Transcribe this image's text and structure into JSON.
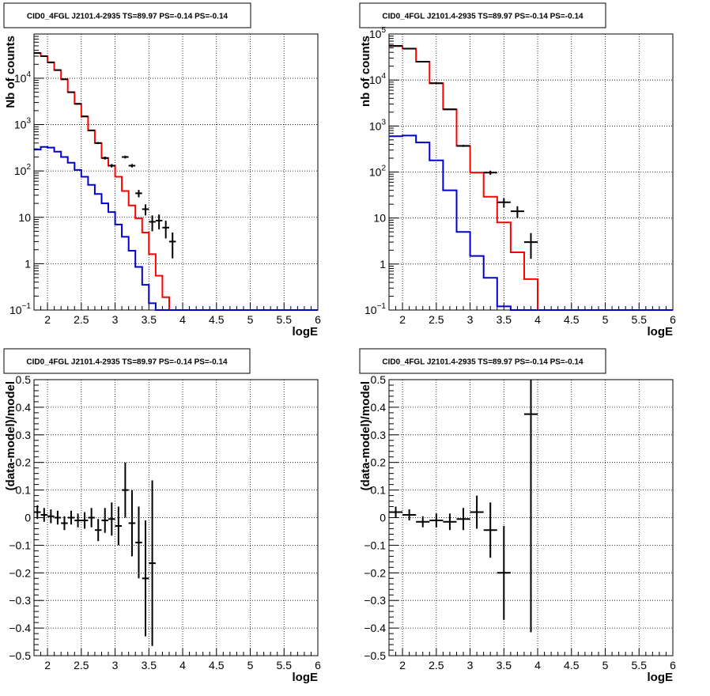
{
  "page": {
    "background": "#ffffff"
  },
  "colors": {
    "total": "#ff0000",
    "component": "#0000cc",
    "data": "#000000",
    "grid": "#000000"
  },
  "chart_data": [
    {
      "type": "line",
      "title": "CID0_4FGL J2101.4-2935 TS=89.97 PS=-0.14 PS=-0.14",
      "xlabel": "logE",
      "ylabel": "Nb of counts",
      "xlim": [
        1.8,
        6.0
      ],
      "ylim": [
        0.1,
        90000
      ],
      "yscale": "log",
      "grid": true,
      "xticks": [
        "2",
        "2.5",
        "3",
        "3.5",
        "4",
        "4.5",
        "5",
        "5.5",
        "6"
      ],
      "yticks": [
        {
          "v": 0.1,
          "base": "10",
          "exp": "−1"
        },
        {
          "v": 1,
          "label": "1"
        },
        {
          "v": 10,
          "label": "10"
        },
        {
          "v": 100,
          "base": "10",
          "exp": "2"
        },
        {
          "v": 1000,
          "base": "10",
          "exp": "3"
        },
        {
          "v": 10000,
          "base": "10",
          "exp": "4"
        }
      ],
      "series": [
        {
          "role": "total",
          "type": "step",
          "x0": 1.8,
          "dx": 0.1,
          "values": [
            35000,
            30000,
            22000,
            15000,
            9500,
            5000,
            2800,
            1500,
            750,
            400,
            190,
            130,
            75,
            37,
            18,
            9.5,
            4.7,
            1.6,
            0.55,
            0.19,
            0.1,
            0.1,
            0.1,
            0.1,
            0.1,
            0.1,
            0.1,
            0.1,
            0.1,
            0.1,
            0.1,
            0.1,
            0.1,
            0.1,
            0.1,
            0.1,
            0.1,
            0.1,
            0.1,
            0.1,
            0.1,
            0.1
          ]
        },
        {
          "role": "component",
          "type": "step",
          "x0": 1.8,
          "dx": 0.1,
          "values": [
            290,
            330,
            320,
            260,
            200,
            150,
            105,
            75,
            50,
            32,
            20,
            13,
            7,
            3.8,
            1.9,
            0.85,
            0.35,
            0.14,
            0.1,
            0.1,
            0.1,
            0.1,
            0.1,
            0.1,
            0.1,
            0.1,
            0.1,
            0.1,
            0.1,
            0.1,
            0.1,
            0.1,
            0.1,
            0.1,
            0.1,
            0.1,
            0.1,
            0.1,
            0.1,
            0.1,
            0.1,
            0.1
          ]
        },
        {
          "role": "data",
          "type": "errorbar",
          "xerr": 0.05,
          "points": [
            {
              "x": 1.85,
              "y": 35000,
              "yerr": [
                190,
                190
              ]
            },
            {
              "x": 1.95,
              "y": 30000,
              "yerr": [
                170,
                170
              ]
            },
            {
              "x": 2.05,
              "y": 22000,
              "yerr": [
                150,
                150
              ]
            },
            {
              "x": 2.15,
              "y": 15000,
              "yerr": [
                120,
                120
              ]
            },
            {
              "x": 2.25,
              "y": 9500,
              "yerr": [
                100,
                100
              ]
            },
            {
              "x": 2.35,
              "y": 5000,
              "yerr": [
                70,
                70
              ]
            },
            {
              "x": 2.45,
              "y": 2800,
              "yerr": [
                53,
                53
              ]
            },
            {
              "x": 2.55,
              "y": 1500,
              "yerr": [
                39,
                39
              ]
            },
            {
              "x": 2.65,
              "y": 750,
              "yerr": [
                27,
                27
              ]
            },
            {
              "x": 2.75,
              "y": 400,
              "yerr": [
                20,
                20
              ]
            },
            {
              "x": 2.85,
              "y": 190,
              "yerr": [
                14,
                14
              ]
            },
            {
              "x": 2.95,
              "y": 130,
              "yerr": [
                11,
                11
              ]
            },
            {
              "x": 3.15,
              "y": 200,
              "yerr": [
                14,
                14
              ]
            },
            {
              "x": 3.25,
              "y": 130,
              "yerr": [
                11,
                11
              ]
            },
            {
              "x": 3.35,
              "y": 33,
              "yerr": [
                6,
                6
              ]
            },
            {
              "x": 3.45,
              "y": 15,
              "yerr": [
                4,
                4
              ]
            },
            {
              "x": 3.55,
              "y": 8,
              "yerr": [
                3,
                3
              ]
            },
            {
              "x": 3.65,
              "y": 8.5,
              "yerr": [
                3,
                3
              ]
            },
            {
              "x": 3.75,
              "y": 6,
              "yerr": [
                2.5,
                2.5
              ]
            },
            {
              "x": 3.85,
              "y": 3,
              "yerr": [
                1.7,
                1.7
              ]
            }
          ]
        }
      ]
    },
    {
      "type": "line",
      "title": "CID0_4FGL J2101.4-2935 TS=89.97 PS=-0.14 PS=-0.14",
      "xlabel": "logE",
      "ylabel": "nb of counts",
      "xlim": [
        1.8,
        6.0
      ],
      "ylim": [
        0.1,
        100000
      ],
      "yscale": "log",
      "grid": true,
      "xticks": [
        "2",
        "2.5",
        "3",
        "3.5",
        "4",
        "4.5",
        "5",
        "5.5",
        "6"
      ],
      "yticks": [
        {
          "v": 0.1,
          "base": "10",
          "exp": "−1"
        },
        {
          "v": 1,
          "label": "1"
        },
        {
          "v": 10,
          "label": "10"
        },
        {
          "v": 100,
          "base": "10",
          "exp": "2"
        },
        {
          "v": 1000,
          "base": "10",
          "exp": "3"
        },
        {
          "v": 10000,
          "base": "10",
          "exp": "4"
        },
        {
          "v": 100000,
          "base": "10",
          "exp": "5"
        }
      ],
      "series": [
        {
          "role": "total",
          "type": "step",
          "x0": 1.8,
          "dx": 0.2,
          "values": [
            55000,
            48000,
            25000,
            8500,
            2300,
            370,
            97,
            29,
            8,
            1.8,
            0.47,
            0.1,
            0.1,
            0.1,
            0.1,
            0.1,
            0.1,
            0.1,
            0.1,
            0.1,
            0.1
          ]
        },
        {
          "role": "component",
          "type": "step",
          "x0": 1.8,
          "dx": 0.2,
          "values": [
            600,
            620,
            440,
            180,
            40,
            5,
            1.5,
            0.5,
            0.12,
            0.1,
            0.1,
            0.1,
            0.1,
            0.1,
            0.1,
            0.1,
            0.1,
            0.1,
            0.1,
            0.1,
            0.1
          ]
        },
        {
          "role": "data",
          "type": "errorbar",
          "xerr": 0.1,
          "points": [
            {
              "x": 1.9,
              "y": 55000,
              "yerr": [
                230,
                230
              ]
            },
            {
              "x": 2.1,
              "y": 48000,
              "yerr": [
                220,
                220
              ]
            },
            {
              "x": 2.3,
              "y": 25000,
              "yerr": [
                160,
                160
              ]
            },
            {
              "x": 2.5,
              "y": 8500,
              "yerr": [
                92,
                92
              ]
            },
            {
              "x": 2.7,
              "y": 2300,
              "yerr": [
                48,
                48
              ]
            },
            {
              "x": 2.9,
              "y": 370,
              "yerr": [
                19,
                19
              ]
            },
            {
              "x": 3.3,
              "y": 97,
              "yerr": [
                10,
                10
              ]
            },
            {
              "x": 3.5,
              "y": 22,
              "yerr": [
                5,
                5
              ]
            },
            {
              "x": 3.7,
              "y": 14,
              "yerr": [
                4,
                4
              ]
            },
            {
              "x": 3.9,
              "y": 3,
              "yerr": [
                1.7,
                1.7
              ]
            }
          ]
        }
      ]
    },
    {
      "type": "scatter",
      "title": "CID0_4FGL J2101.4-2935 TS=89.97 PS=-0.14 PS=-0.14",
      "xlabel": "logE",
      "ylabel": "(data-model)/model",
      "xlim": [
        1.8,
        6.0
      ],
      "ylim": [
        -0.5,
        0.5
      ],
      "yscale": "linear",
      "grid": true,
      "xticks": [
        "2",
        "2.5",
        "3",
        "3.5",
        "4",
        "4.5",
        "5",
        "5.5",
        "6"
      ],
      "yticks": [
        "−0.5",
        "−0.4",
        "−0.3",
        "−0.2",
        "−0.1",
        "0",
        "0.1",
        "0.2",
        "0.3",
        "0.4",
        "0.5"
      ],
      "series": [
        {
          "role": "data",
          "type": "errorbar",
          "xerr": 0.05,
          "points": [
            {
              "x": 1.85,
              "y": 0.02,
              "yerr": [
                0.025,
                0.025
              ]
            },
            {
              "x": 1.95,
              "y": 0.01,
              "yerr": [
                0.025,
                0.025
              ]
            },
            {
              "x": 2.05,
              "y": 0.005,
              "yerr": [
                0.025,
                0.025
              ]
            },
            {
              "x": 2.15,
              "y": 0.0,
              "yerr": [
                0.025,
                0.025
              ]
            },
            {
              "x": 2.25,
              "y": -0.02,
              "yerr": [
                0.025,
                0.025
              ]
            },
            {
              "x": 2.35,
              "y": 0.0,
              "yerr": [
                0.025,
                0.025
              ]
            },
            {
              "x": 2.45,
              "y": -0.01,
              "yerr": [
                0.025,
                0.025
              ]
            },
            {
              "x": 2.55,
              "y": -0.01,
              "yerr": [
                0.03,
                0.03
              ]
            },
            {
              "x": 2.65,
              "y": 0.0,
              "yerr": [
                0.035,
                0.035
              ]
            },
            {
              "x": 2.75,
              "y": -0.045,
              "yerr": [
                0.04,
                0.04
              ]
            },
            {
              "x": 2.85,
              "y": -0.01,
              "yerr": [
                0.045,
                0.045
              ]
            },
            {
              "x": 2.95,
              "y": -0.005,
              "yerr": [
                0.06,
                0.06
              ]
            },
            {
              "x": 3.05,
              "y": -0.03,
              "yerr": [
                0.07,
                0.07
              ]
            },
            {
              "x": 3.15,
              "y": 0.1,
              "yerr": [
                0.1,
                0.1
              ]
            },
            {
              "x": 3.25,
              "y": -0.02,
              "yerr": [
                0.12,
                0.12
              ]
            },
            {
              "x": 3.35,
              "y": -0.09,
              "yerr": [
                0.13,
                0.13
              ]
            },
            {
              "x": 3.45,
              "y": -0.22,
              "yerr": [
                0.21,
                0.21
              ]
            },
            {
              "x": 3.55,
              "y": -0.165,
              "yerr": [
                0.3,
                0.3
              ]
            }
          ]
        }
      ]
    },
    {
      "type": "scatter",
      "title": "CID0_4FGL J2101.4-2935 TS=89.97 PS=-0.14 PS=-0.14",
      "xlabel": "logE",
      "ylabel": "(data-model)/model",
      "xlim": [
        1.8,
        6.0
      ],
      "ylim": [
        -0.5,
        0.5
      ],
      "yscale": "linear",
      "grid": true,
      "xticks": [
        "2",
        "2.5",
        "3",
        "3.5",
        "4",
        "4.5",
        "5",
        "5.5",
        "6"
      ],
      "yticks": [
        "−0.5",
        "−0.4",
        "−0.3",
        "−0.2",
        "−0.1",
        "0",
        "0.1",
        "0.2",
        "0.3",
        "0.4",
        "0.5"
      ],
      "series": [
        {
          "role": "data",
          "type": "errorbar",
          "xerr": 0.1,
          "points": [
            {
              "x": 1.9,
              "y": 0.02,
              "yerr": [
                0.02,
                0.02
              ]
            },
            {
              "x": 2.1,
              "y": 0.01,
              "yerr": [
                0.02,
                0.02
              ]
            },
            {
              "x": 2.3,
              "y": -0.015,
              "yerr": [
                0.02,
                0.02
              ]
            },
            {
              "x": 2.5,
              "y": -0.01,
              "yerr": [
                0.025,
                0.025
              ]
            },
            {
              "x": 2.7,
              "y": -0.015,
              "yerr": [
                0.03,
                0.03
              ]
            },
            {
              "x": 2.9,
              "y": -0.005,
              "yerr": [
                0.04,
                0.04
              ]
            },
            {
              "x": 3.1,
              "y": 0.02,
              "yerr": [
                0.06,
                0.06
              ]
            },
            {
              "x": 3.3,
              "y": -0.045,
              "yerr": [
                0.1,
                0.1
              ]
            },
            {
              "x": 3.5,
              "y": -0.2,
              "yerr": [
                0.17,
                0.17
              ]
            },
            {
              "x": 3.9,
              "y": 0.375,
              "yerr": [
                0.79,
                0.125
              ]
            }
          ]
        }
      ]
    }
  ]
}
